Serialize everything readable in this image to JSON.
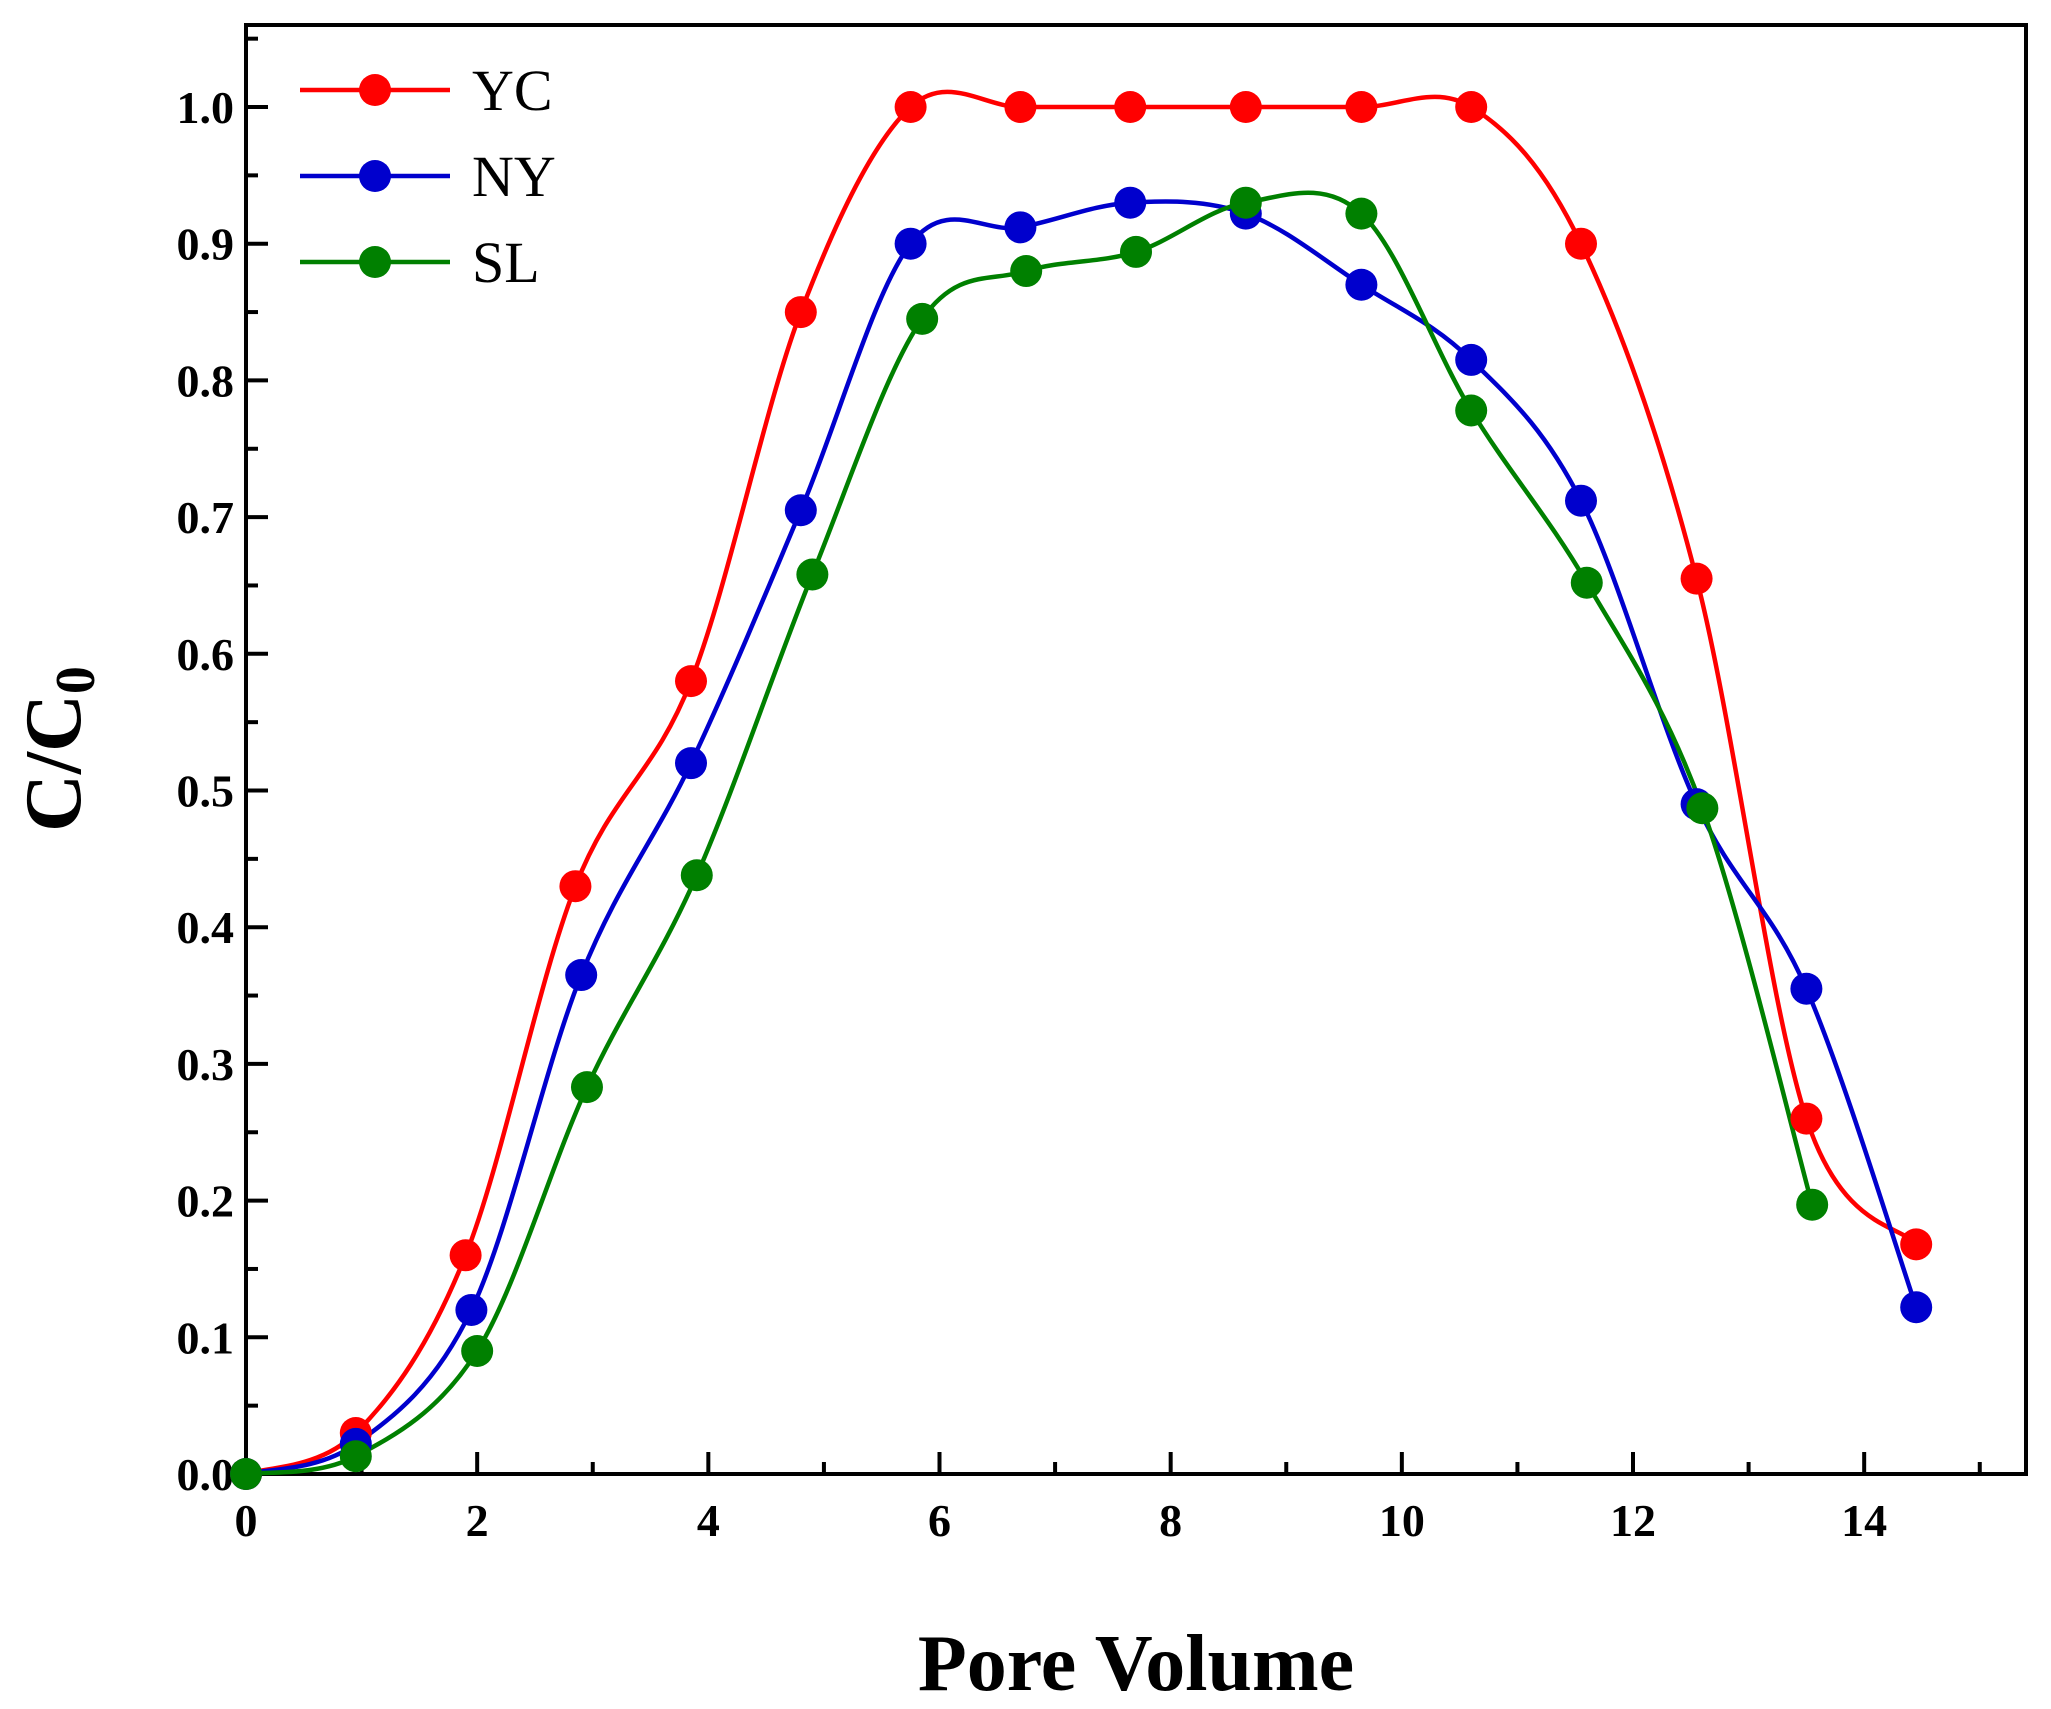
{
  "chart_data": {
    "type": "line",
    "title": "",
    "xlabel": "Pore Volume",
    "ylabel": "C/C",
    "ylabel_subscript": "0",
    "xlim": [
      0,
      15.4
    ],
    "ylim": [
      0,
      1.06
    ],
    "xticks": [
      0,
      2,
      4,
      6,
      8,
      10,
      12,
      14
    ],
    "yticks": [
      0.0,
      0.1,
      0.2,
      0.3,
      0.4,
      0.5,
      0.6,
      0.7,
      0.8,
      0.9,
      1.0
    ],
    "legend_position": "top-left",
    "series": [
      {
        "name": "YC",
        "color": "#ff0000",
        "x": [
          0,
          0.95,
          1.9,
          2.85,
          3.85,
          4.8,
          5.75,
          6.7,
          7.65,
          8.65,
          9.65,
          10.6,
          11.55,
          12.55,
          13.5,
          14.45
        ],
        "y": [
          0.0,
          0.03,
          0.16,
          0.43,
          0.58,
          0.85,
          1.0,
          1.0,
          1.0,
          1.0,
          1.0,
          1.0,
          0.9,
          0.655,
          0.26,
          0.168
        ]
      },
      {
        "name": "NY",
        "color": "#0000cd",
        "x": [
          0,
          0.95,
          1.95,
          2.9,
          3.85,
          4.8,
          5.75,
          6.7,
          7.65,
          8.65,
          9.65,
          10.6,
          11.55,
          12.55,
          13.5,
          14.45
        ],
        "y": [
          0.0,
          0.022,
          0.12,
          0.365,
          0.52,
          0.705,
          0.9,
          0.912,
          0.93,
          0.922,
          0.87,
          0.815,
          0.712,
          0.49,
          0.355,
          0.122
        ]
      },
      {
        "name": "SL",
        "color": "#008000",
        "x": [
          0,
          0.95,
          2.0,
          2.95,
          3.9,
          4.9,
          5.85,
          6.75,
          7.7,
          8.65,
          9.65,
          10.6,
          11.6,
          12.6,
          13.55
        ],
        "y": [
          0.0,
          0.013,
          0.09,
          0.283,
          0.438,
          0.658,
          0.845,
          0.88,
          0.894,
          0.93,
          0.922,
          0.778,
          0.652,
          0.487,
          0.197
        ]
      }
    ]
  }
}
